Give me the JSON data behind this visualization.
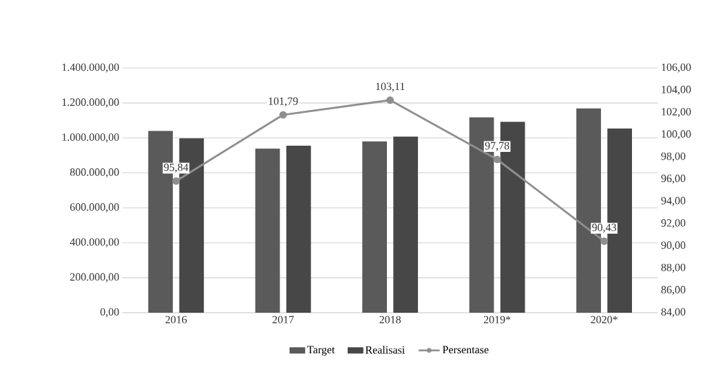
{
  "chart_data": {
    "type": "bar",
    "categories": [
      "2016",
      "2017",
      "2018",
      "2019*",
      "2020*"
    ],
    "series": [
      {
        "name": "Target",
        "color": "#5a5a5a",
        "values": [
          1040000,
          939000,
          980000,
          1118000,
          1169000
        ]
      },
      {
        "name": "Realisasi",
        "color": "#474747",
        "values": [
          998000,
          956000,
          1008000,
          1092000,
          1054000
        ]
      },
      {
        "name": "Persentase",
        "type": "line",
        "axis": "y2",
        "color": "#8f8f8f",
        "values": [
          95.84,
          101.79,
          103.11,
          97.78,
          90.43
        ],
        "value_labels": [
          "95,84",
          "101,79",
          "103,11",
          "97,78",
          "90,43"
        ]
      }
    ],
    "ylim": [
      0,
      1400000
    ],
    "yticks": [
      {
        "value": 0,
        "label": "0,00"
      },
      {
        "value": 200000,
        "label": "200.000,00"
      },
      {
        "value": 400000,
        "label": "400.000,00"
      },
      {
        "value": 600000,
        "label": "600.000,00"
      },
      {
        "value": 800000,
        "label": "800.000,00"
      },
      {
        "value": 1000000,
        "label": "1.000.000,00"
      },
      {
        "value": 1200000,
        "label": "1.200.000,00"
      },
      {
        "value": 1400000,
        "label": "1.400.000,00"
      }
    ],
    "y2lim": [
      84,
      106
    ],
    "y2ticks": [
      {
        "value": 84,
        "label": "84,00"
      },
      {
        "value": 86,
        "label": "86,00"
      },
      {
        "value": 88,
        "label": "88,00"
      },
      {
        "value": 90,
        "label": "90,00"
      },
      {
        "value": 92,
        "label": "92,00"
      },
      {
        "value": 94,
        "label": "94,00"
      },
      {
        "value": 96,
        "label": "96,00"
      },
      {
        "value": 98,
        "label": "98,00"
      },
      {
        "value": 100,
        "label": "100,00"
      },
      {
        "value": 102,
        "label": "102,00"
      },
      {
        "value": 104,
        "label": "104,00"
      },
      {
        "value": 106,
        "label": "106,00"
      }
    ],
    "grid": "y",
    "legend": "bottom",
    "marker": "circle"
  }
}
